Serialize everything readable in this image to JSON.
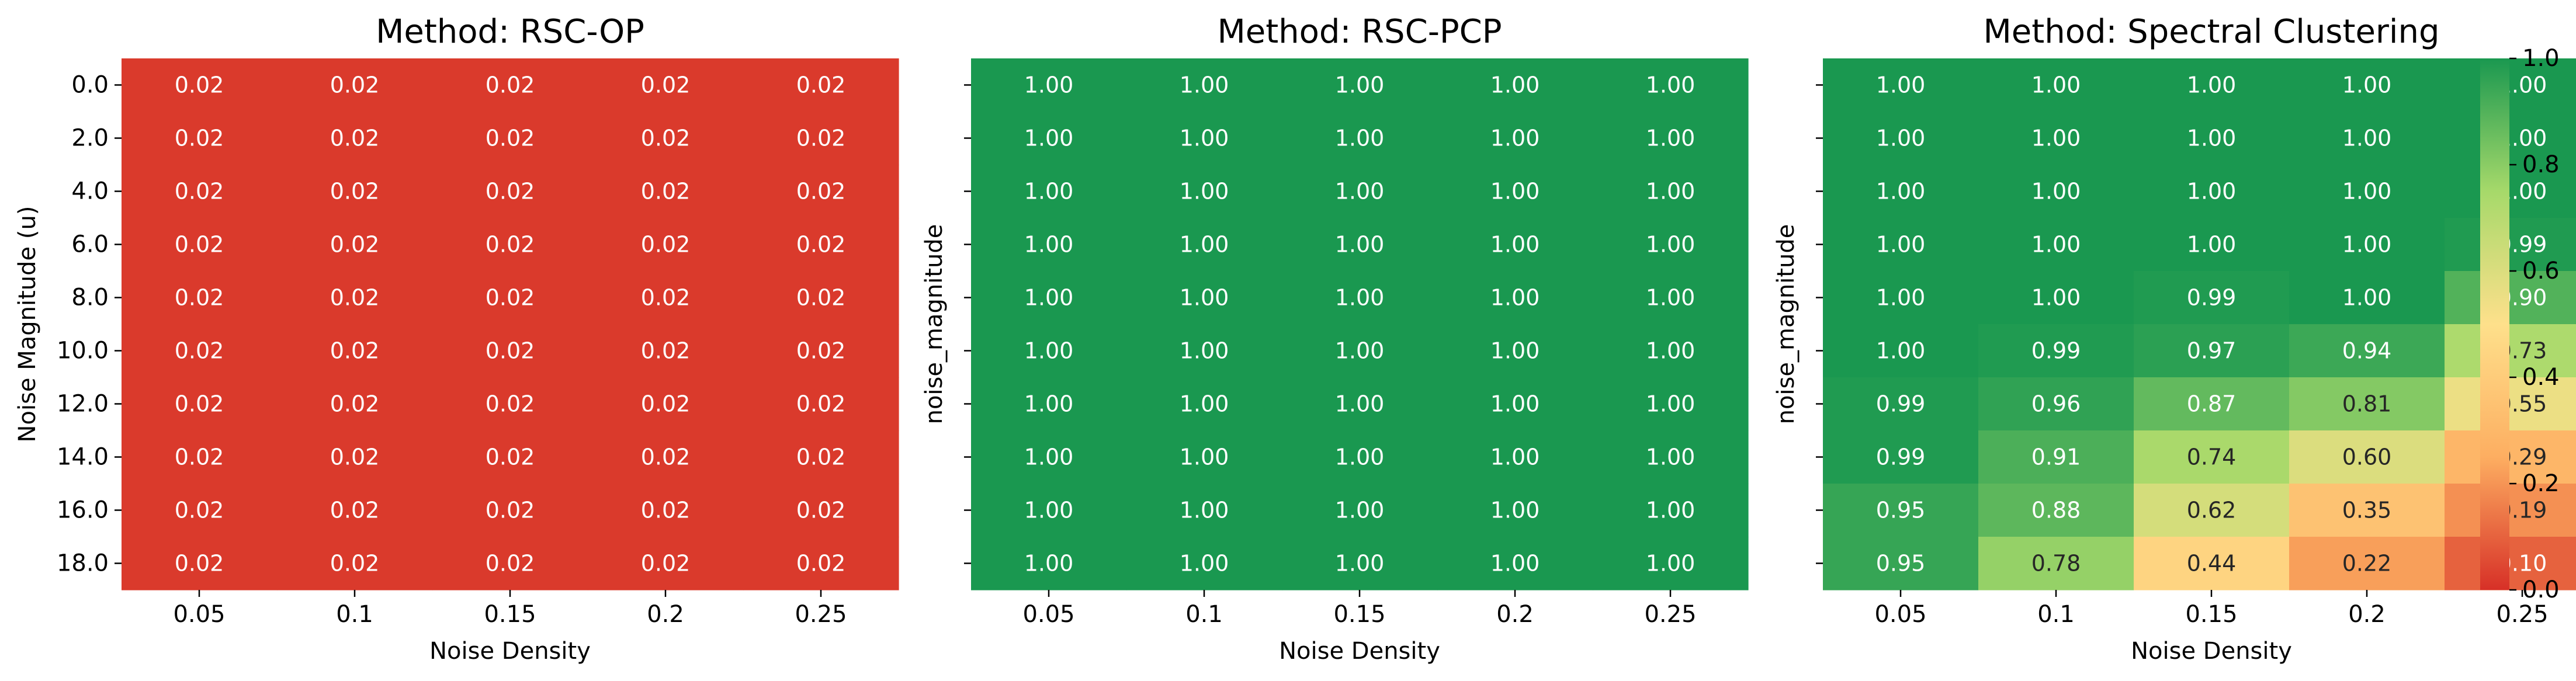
{
  "chart_data": {
    "type": "heatmap",
    "y": [
      "0.0",
      "2.0",
      "4.0",
      "6.0",
      "8.0",
      "10.0",
      "12.0",
      "14.0",
      "16.0",
      "18.0"
    ],
    "x": [
      "0.05",
      "0.1",
      "0.15",
      "0.2",
      "0.25"
    ],
    "xlabel": "Noise Density",
    "colorbar": {
      "range": [
        0,
        1
      ],
      "ticks": [
        "0.0",
        "0.2",
        "0.4",
        "0.6",
        "0.8",
        "1.0"
      ],
      "colors": [
        "#d73027",
        "#fdae61",
        "#fee08b",
        "#a6d96a",
        "#1a9850"
      ]
    },
    "panels": [
      {
        "title": "Method: RSC-OP",
        "ylabel": "Noise Magnitude (u)",
        "show_ytick_labels": true,
        "values": [
          [
            0.02,
            0.02,
            0.02,
            0.02,
            0.02
          ],
          [
            0.02,
            0.02,
            0.02,
            0.02,
            0.02
          ],
          [
            0.02,
            0.02,
            0.02,
            0.02,
            0.02
          ],
          [
            0.02,
            0.02,
            0.02,
            0.02,
            0.02
          ],
          [
            0.02,
            0.02,
            0.02,
            0.02,
            0.02
          ],
          [
            0.02,
            0.02,
            0.02,
            0.02,
            0.02
          ],
          [
            0.02,
            0.02,
            0.02,
            0.02,
            0.02
          ],
          [
            0.02,
            0.02,
            0.02,
            0.02,
            0.02
          ],
          [
            0.02,
            0.02,
            0.02,
            0.02,
            0.02
          ],
          [
            0.02,
            0.02,
            0.02,
            0.02,
            0.02
          ]
        ]
      },
      {
        "title": "Method: RSC-PCP",
        "ylabel": "noise_magnitude",
        "show_ytick_labels": false,
        "values": [
          [
            1.0,
            1.0,
            1.0,
            1.0,
            1.0
          ],
          [
            1.0,
            1.0,
            1.0,
            1.0,
            1.0
          ],
          [
            1.0,
            1.0,
            1.0,
            1.0,
            1.0
          ],
          [
            1.0,
            1.0,
            1.0,
            1.0,
            1.0
          ],
          [
            1.0,
            1.0,
            1.0,
            1.0,
            1.0
          ],
          [
            1.0,
            1.0,
            1.0,
            1.0,
            1.0
          ],
          [
            1.0,
            1.0,
            1.0,
            1.0,
            1.0
          ],
          [
            1.0,
            1.0,
            1.0,
            1.0,
            1.0
          ],
          [
            1.0,
            1.0,
            1.0,
            1.0,
            1.0
          ],
          [
            1.0,
            1.0,
            1.0,
            1.0,
            1.0
          ]
        ]
      },
      {
        "title": "Method: Spectral Clustering",
        "ylabel": "noise_magnitude",
        "show_ytick_labels": false,
        "values": [
          [
            1.0,
            1.0,
            1.0,
            1.0,
            1.0
          ],
          [
            1.0,
            1.0,
            1.0,
            1.0,
            1.0
          ],
          [
            1.0,
            1.0,
            1.0,
            1.0,
            1.0
          ],
          [
            1.0,
            1.0,
            1.0,
            1.0,
            0.99
          ],
          [
            1.0,
            1.0,
            0.99,
            1.0,
            0.9
          ],
          [
            1.0,
            0.99,
            0.97,
            0.94,
            0.73
          ],
          [
            0.99,
            0.96,
            0.87,
            0.81,
            0.55
          ],
          [
            0.99,
            0.91,
            0.74,
            0.6,
            0.29
          ],
          [
            0.95,
            0.88,
            0.62,
            0.35,
            0.19
          ],
          [
            0.95,
            0.78,
            0.44,
            0.22,
            0.1
          ]
        ]
      }
    ]
  }
}
